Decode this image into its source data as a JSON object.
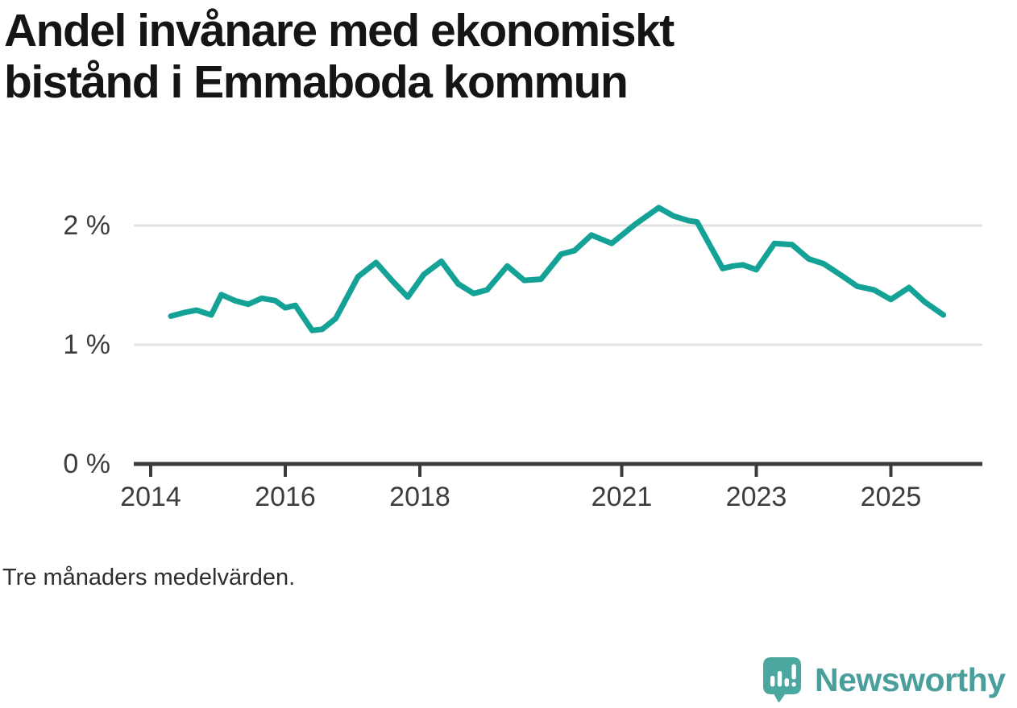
{
  "title": {
    "line1": "Andel invånare med ekonomiskt",
    "line2": "bistånd i Emmaboda kommun"
  },
  "footnote": "Tre månaders medelvärden.",
  "branding": {
    "name": "Newsworthy",
    "icon": "newsworthy-speech-bubble-bar-chart-icon",
    "wordmark_color": "#4A9E9B",
    "icon_color": "#4BA8A1"
  },
  "colors": {
    "line": "#14A296",
    "grid": "#E3E3E3",
    "axis": "#3B3B3B",
    "tick_label": "#3D3D3D",
    "title": "#151515"
  },
  "chart_data": {
    "type": "line",
    "title": "Andel invånare med ekonomiskt bistånd i Emmaboda kommun",
    "subtitle": "Tre månaders medelvärden.",
    "unit": "%",
    "grid": "horizontal",
    "legend_position": "none",
    "xlim": [
      2013.75,
      2026.35
    ],
    "ylim": [
      0,
      2.35
    ],
    "x_ticks": [
      2014,
      2016,
      2018,
      2021,
      2023,
      2025
    ],
    "x_tick_labels": [
      "2014",
      "2016",
      "2018",
      "2021",
      "2023",
      "2025"
    ],
    "y_ticks": [
      0,
      1,
      2
    ],
    "y_tick_labels": [
      "0 %",
      "1 %",
      "2 %"
    ],
    "series": [
      {
        "name": "Andel invånare med ekonomiskt bistånd",
        "x": [
          2014.3,
          2014.5,
          2014.68,
          2014.9,
          2015.05,
          2015.25,
          2015.45,
          2015.65,
          2015.85,
          2016.0,
          2016.15,
          2016.4,
          2016.55,
          2016.75,
          2017.08,
          2017.35,
          2017.6,
          2017.82,
          2018.06,
          2018.32,
          2018.57,
          2018.8,
          2019.0,
          2019.3,
          2019.55,
          2019.8,
          2020.1,
          2020.3,
          2020.55,
          2020.85,
          2021.2,
          2021.55,
          2021.77,
          2022.0,
          2022.12,
          2022.5,
          2022.65,
          2022.8,
          2023.0,
          2023.27,
          2023.53,
          2023.78,
          2024.0,
          2024.27,
          2024.5,
          2024.75,
          2025.0,
          2025.27,
          2025.5,
          2025.78
        ],
        "y": [
          1.24,
          1.27,
          1.29,
          1.25,
          1.42,
          1.37,
          1.34,
          1.39,
          1.37,
          1.31,
          1.33,
          1.12,
          1.13,
          1.22,
          1.57,
          1.69,
          1.53,
          1.4,
          1.59,
          1.7,
          1.51,
          1.43,
          1.46,
          1.66,
          1.54,
          1.55,
          1.76,
          1.79,
          1.92,
          1.85,
          2.01,
          2.15,
          2.08,
          2.04,
          2.03,
          1.64,
          1.66,
          1.67,
          1.63,
          1.85,
          1.84,
          1.72,
          1.68,
          1.58,
          1.49,
          1.46,
          1.38,
          1.48,
          1.36,
          1.25
        ]
      }
    ]
  }
}
